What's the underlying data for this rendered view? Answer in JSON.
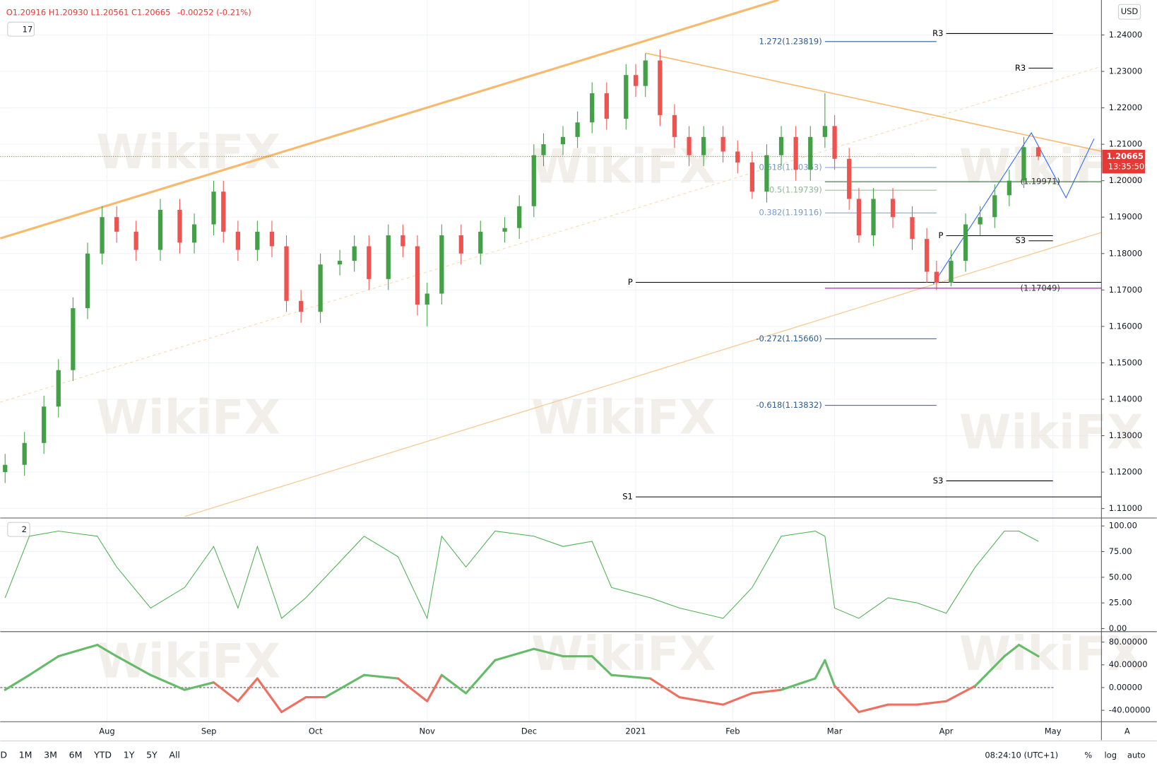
{
  "header": {
    "ohlc": "O1.20916 H1.20930 L1.20561 C1.20665",
    "change": "-0.00252 (-0.21%)",
    "main_badge": "17",
    "osc_badge": "2",
    "currency": "USD",
    "price_label": "1.20665",
    "countdown": "13:35:50"
  },
  "toolbar": {
    "ranges": [
      "D",
      "1M",
      "3M",
      "6M",
      "YTD",
      "1Y",
      "5Y",
      "All"
    ],
    "clock": "08:24:10 (UTC+1)",
    "percent": "%",
    "log": "log",
    "auto": "auto",
    "axis_mode": "A"
  },
  "watermark": "WikiFX",
  "chart_data": [
    {
      "type": "candlestick",
      "xlim": [
        -22,
        205
      ],
      "ylim": [
        1.1074,
        1.2496
      ],
      "up_color": "#43a047",
      "down_color": "#ef5350",
      "grid": true,
      "xticks": [
        {
          "value": 0,
          "label": "Aug"
        },
        {
          "value": 21,
          "label": "Sep"
        },
        {
          "value": 43,
          "label": "Oct"
        },
        {
          "value": 66,
          "label": "Nov"
        },
        {
          "value": 87,
          "label": "Dec"
        },
        {
          "value": 109,
          "label": "2021"
        },
        {
          "value": 129,
          "label": "Feb"
        },
        {
          "value": 150,
          "label": "Mar"
        },
        {
          "value": 173,
          "label": "Apr"
        },
        {
          "value": 195,
          "label": "May"
        }
      ],
      "yticks": [
        {
          "value": 1.11,
          "label": "1.11000"
        },
        {
          "value": 1.12,
          "label": "1.12000"
        },
        {
          "value": 1.13,
          "label": "1.13000"
        },
        {
          "value": 1.14,
          "label": "1.14000"
        },
        {
          "value": 1.15,
          "label": "1.15000"
        },
        {
          "value": 1.16,
          "label": "1.16000"
        },
        {
          "value": 1.17,
          "label": "1.17000"
        },
        {
          "value": 1.18,
          "label": "1.18000"
        },
        {
          "value": 1.19,
          "label": "1.19000"
        },
        {
          "value": 1.2,
          "label": "1.20000"
        },
        {
          "value": 1.21,
          "label": "1.21000"
        },
        {
          "value": 1.22,
          "label": "1.22000"
        },
        {
          "value": 1.23,
          "label": "1.23000"
        },
        {
          "value": 1.24,
          "label": "1.24000"
        }
      ],
      "x": [
        -21,
        -17,
        -13,
        -10,
        -7,
        -4,
        -1,
        2,
        6,
        11,
        15,
        18,
        22,
        24,
        27,
        31,
        34,
        37,
        40,
        44,
        48,
        51,
        54,
        58,
        61,
        64,
        66,
        69,
        73,
        77,
        82,
        85,
        88,
        90,
        94,
        97,
        100,
        103,
        107,
        109,
        111,
        114,
        117,
        120,
        123,
        127,
        130,
        133,
        136,
        139,
        142,
        145,
        148,
        150,
        153,
        155,
        158,
        162,
        166,
        169,
        171,
        174,
        177,
        180,
        183,
        186,
        189,
        192
      ],
      "open": [
        1.12,
        1.122,
        1.128,
        1.138,
        1.148,
        1.165,
        1.18,
        1.19,
        1.186,
        1.181,
        1.192,
        1.183,
        1.188,
        1.197,
        1.186,
        1.181,
        1.186,
        1.182,
        1.167,
        1.164,
        1.177,
        1.178,
        1.182,
        1.173,
        1.185,
        1.182,
        1.166,
        1.169,
        1.185,
        1.18,
        1.186,
        1.187,
        1.193,
        1.207,
        1.21,
        1.212,
        1.216,
        1.224,
        1.217,
        1.229,
        1.226,
        1.233,
        1.218,
        1.212,
        1.207,
        1.212,
        1.208,
        1.205,
        1.197,
        1.207,
        1.212,
        1.203,
        1.212,
        1.215,
        1.206,
        1.195,
        1.185,
        1.195,
        1.19,
        1.184,
        1.175,
        1.172,
        1.178,
        1.188,
        1.19,
        1.196,
        1.2,
        1.20916
      ],
      "high": [
        1.125,
        1.131,
        1.141,
        1.151,
        1.168,
        1.183,
        1.193,
        1.193,
        1.189,
        1.195,
        1.195,
        1.191,
        1.2,
        1.2,
        1.189,
        1.189,
        1.189,
        1.185,
        1.17,
        1.18,
        1.181,
        1.185,
        1.185,
        1.188,
        1.188,
        1.185,
        1.172,
        1.188,
        1.188,
        1.189,
        1.19,
        1.196,
        1.21,
        1.213,
        1.215,
        1.219,
        1.227,
        1.227,
        1.232,
        1.232,
        1.235,
        1.236,
        1.221,
        1.215,
        1.215,
        1.215,
        1.211,
        1.208,
        1.21,
        1.215,
        1.215,
        1.215,
        1.224,
        1.218,
        1.209,
        1.198,
        1.198,
        1.198,
        1.193,
        1.187,
        1.178,
        1.181,
        1.191,
        1.193,
        1.199,
        1.203,
        1.212,
        1.2093
      ],
      "low": [
        1.117,
        1.119,
        1.125,
        1.135,
        1.145,
        1.162,
        1.177,
        1.183,
        1.178,
        1.178,
        1.18,
        1.18,
        1.185,
        1.183,
        1.178,
        1.178,
        1.179,
        1.164,
        1.161,
        1.161,
        1.174,
        1.175,
        1.17,
        1.17,
        1.179,
        1.163,
        1.16,
        1.166,
        1.177,
        1.177,
        1.183,
        1.184,
        1.19,
        1.204,
        1.207,
        1.209,
        1.213,
        1.214,
        1.214,
        1.223,
        1.223,
        1.215,
        1.209,
        1.204,
        1.204,
        1.205,
        1.202,
        1.195,
        1.194,
        1.204,
        1.2,
        1.2,
        1.209,
        1.203,
        1.192,
        1.183,
        1.182,
        1.187,
        1.181,
        1.172,
        1.17,
        1.171,
        1.175,
        1.185,
        1.187,
        1.193,
        1.198,
        1.20561
      ],
      "close": [
        1.122,
        1.128,
        1.138,
        1.148,
        1.165,
        1.18,
        1.19,
        1.186,
        1.181,
        1.192,
        1.183,
        1.188,
        1.197,
        1.186,
        1.181,
        1.186,
        1.182,
        1.167,
        1.164,
        1.177,
        1.178,
        1.182,
        1.173,
        1.185,
        1.182,
        1.166,
        1.169,
        1.185,
        1.18,
        1.186,
        1.187,
        1.193,
        1.207,
        1.21,
        1.212,
        1.216,
        1.224,
        1.217,
        1.229,
        1.226,
        1.233,
        1.218,
        1.212,
        1.207,
        1.212,
        1.208,
        1.205,
        1.197,
        1.207,
        1.212,
        1.203,
        1.212,
        1.215,
        1.206,
        1.195,
        1.185,
        1.195,
        1.19,
        1.184,
        1.175,
        1.172,
        1.178,
        1.188,
        1.19,
        1.196,
        1.2,
        1.2092,
        1.20665
      ],
      "levels": [
        {
          "label": "1.272(1.23819)",
          "value": 1.23819,
          "start": 148,
          "end": 171,
          "color": "#2a5c9a"
        },
        {
          "label": "0.618(1.20363)",
          "value": 1.20363,
          "start": 148,
          "end": 171,
          "color": "#7a9cc6"
        },
        {
          "label": "0.5(1.19739)",
          "value": 1.19739,
          "start": 148,
          "end": 171,
          "color": "#8fb98f"
        },
        {
          "label": "0.382(1.19116)",
          "value": 1.19116,
          "start": 148,
          "end": 171,
          "color": "#7a9cc6"
        },
        {
          "label": "-0.272(1.15660)",
          "value": 1.1566,
          "start": 148,
          "end": 171,
          "color": "#2a5c9a"
        },
        {
          "label": "-0.618(1.13832)",
          "value": 1.13832,
          "start": 148,
          "end": 171,
          "color": "#2a5c9a"
        },
        {
          "label": "R3",
          "value": 1.2404,
          "start": 173,
          "end": 195,
          "color": "#000000"
        },
        {
          "label": "R3",
          "value": 1.2309,
          "start": 190,
          "end": 195,
          "color": "#000000"
        },
        {
          "label": "P",
          "value": 1.1849,
          "start": 173,
          "end": 195,
          "color": "#000000"
        },
        {
          "label": "S3",
          "value": 1.1835,
          "start": 190,
          "end": 195,
          "color": "#000000"
        },
        {
          "label": "P",
          "value": 1.1721,
          "start": 109,
          "end": 205,
          "color": "#000000"
        },
        {
          "label": "S3",
          "value": 1.1176,
          "start": 173,
          "end": 195,
          "color": "#000000"
        },
        {
          "label": "S1",
          "value": 1.1132,
          "start": 109,
          "end": 205,
          "color": "#000000"
        },
        {
          "label": "(1.19971)",
          "value": 1.19971,
          "start": 148,
          "end": 205,
          "color": "#2e7d32",
          "label_side": "right"
        },
        {
          "label": "(1.17049)",
          "value": 1.17049,
          "start": 148,
          "end": 205,
          "color": "#c000c0",
          "label_side": "right"
        }
      ]
    },
    {
      "type": "line",
      "ylim": [
        -3,
        107
      ],
      "grid": true,
      "yticks": [
        {
          "value": 0,
          "label": "0.00"
        },
        {
          "value": 25,
          "label": "25.00"
        },
        {
          "value": 50,
          "label": "50.00"
        },
        {
          "value": 75,
          "label": "75.00"
        },
        {
          "value": 100,
          "label": "100.00"
        }
      ],
      "x": [
        -21,
        -16,
        -10,
        -2,
        2,
        9,
        16,
        22,
        27,
        31,
        36,
        41,
        45,
        53,
        60,
        66,
        69,
        74,
        80,
        88,
        94,
        100,
        104,
        112,
        118,
        127,
        133,
        139,
        146,
        148,
        150,
        155,
        161,
        167,
        173,
        179,
        185,
        188,
        192
      ],
      "series": [
        {
          "color": "#4caf50",
          "values": [
            30,
            90,
            95,
            90,
            60,
            20,
            40,
            80,
            20,
            80,
            10,
            30,
            50,
            90,
            70,
            10,
            90,
            60,
            95,
            90,
            80,
            85,
            40,
            30,
            20,
            10,
            40,
            90,
            95,
            90,
            20,
            10,
            30,
            25,
            15,
            60,
            95,
            95,
            85
          ]
        }
      ]
    },
    {
      "type": "momentum",
      "ylim": [
        -60,
        97
      ],
      "pos_color": "#66bb6a",
      "neg_color": "#ef6f60",
      "yticks": [
        {
          "value": 80,
          "label": "80.00000"
        },
        {
          "value": 40,
          "label": "40.00000"
        },
        {
          "value": 0,
          "label": "0.00000"
        },
        {
          "value": -40,
          "label": "-40.00000"
        }
      ],
      "x": [
        -21,
        -16,
        -10,
        -2,
        2,
        9,
        16,
        22,
        27,
        31,
        36,
        41,
        45,
        53,
        60,
        66,
        69,
        74,
        80,
        88,
        94,
        100,
        104,
        112,
        118,
        127,
        133,
        139,
        146,
        148,
        150,
        155,
        161,
        167,
        173,
        179,
        185,
        188,
        192
      ],
      "values": [
        -4,
        22,
        55,
        75,
        55,
        22,
        -4,
        9,
        -24,
        16,
        -43,
        -17,
        -17,
        22,
        16,
        -24,
        22,
        -10,
        48,
        68,
        55,
        55,
        22,
        16,
        -17,
        -30,
        -10,
        -4,
        16,
        48,
        3,
        -43,
        -30,
        -30,
        -24,
        3,
        55,
        75,
        55
      ]
    }
  ]
}
